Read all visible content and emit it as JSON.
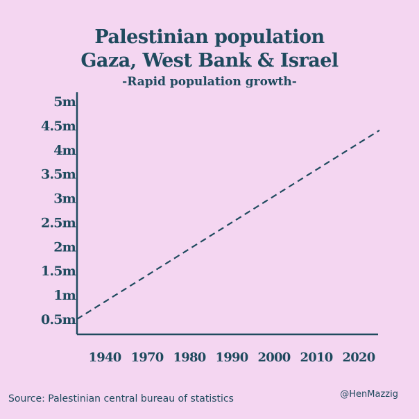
{
  "chart_data": {
    "type": "line",
    "title": "Palestinian population",
    "title_line2": "Gaza, West Bank & Israel",
    "subtitle": "-Rapid population growth-",
    "categories": [
      "1940",
      "1970",
      "1980",
      "1990",
      "2000",
      "2010",
      "2020"
    ],
    "y_ticks": [
      "0.5m",
      "1m",
      "1.5m",
      "2m",
      "2.5m",
      "3m",
      "3.5m",
      "4m",
      "4.5m",
      "5m"
    ],
    "y_tick_values": [
      0.5,
      1,
      1.5,
      2,
      2.5,
      3,
      3.5,
      4,
      4.5,
      5
    ],
    "ylim": [
      0.5,
      5
    ],
    "series": [
      {
        "style": "dashed",
        "points": [
          {
            "x": "1940",
            "y": 0.5
          },
          {
            "x": "2020",
            "y": 4.3
          }
        ]
      }
    ],
    "grid": false,
    "colors": {
      "background": "#f4d6f1",
      "text": "#1f4a5e",
      "line": "#1f4a5e"
    }
  },
  "footer": {
    "source": "Source: Palestinian central bureau of statistics",
    "credit": "@HenMazzig"
  }
}
